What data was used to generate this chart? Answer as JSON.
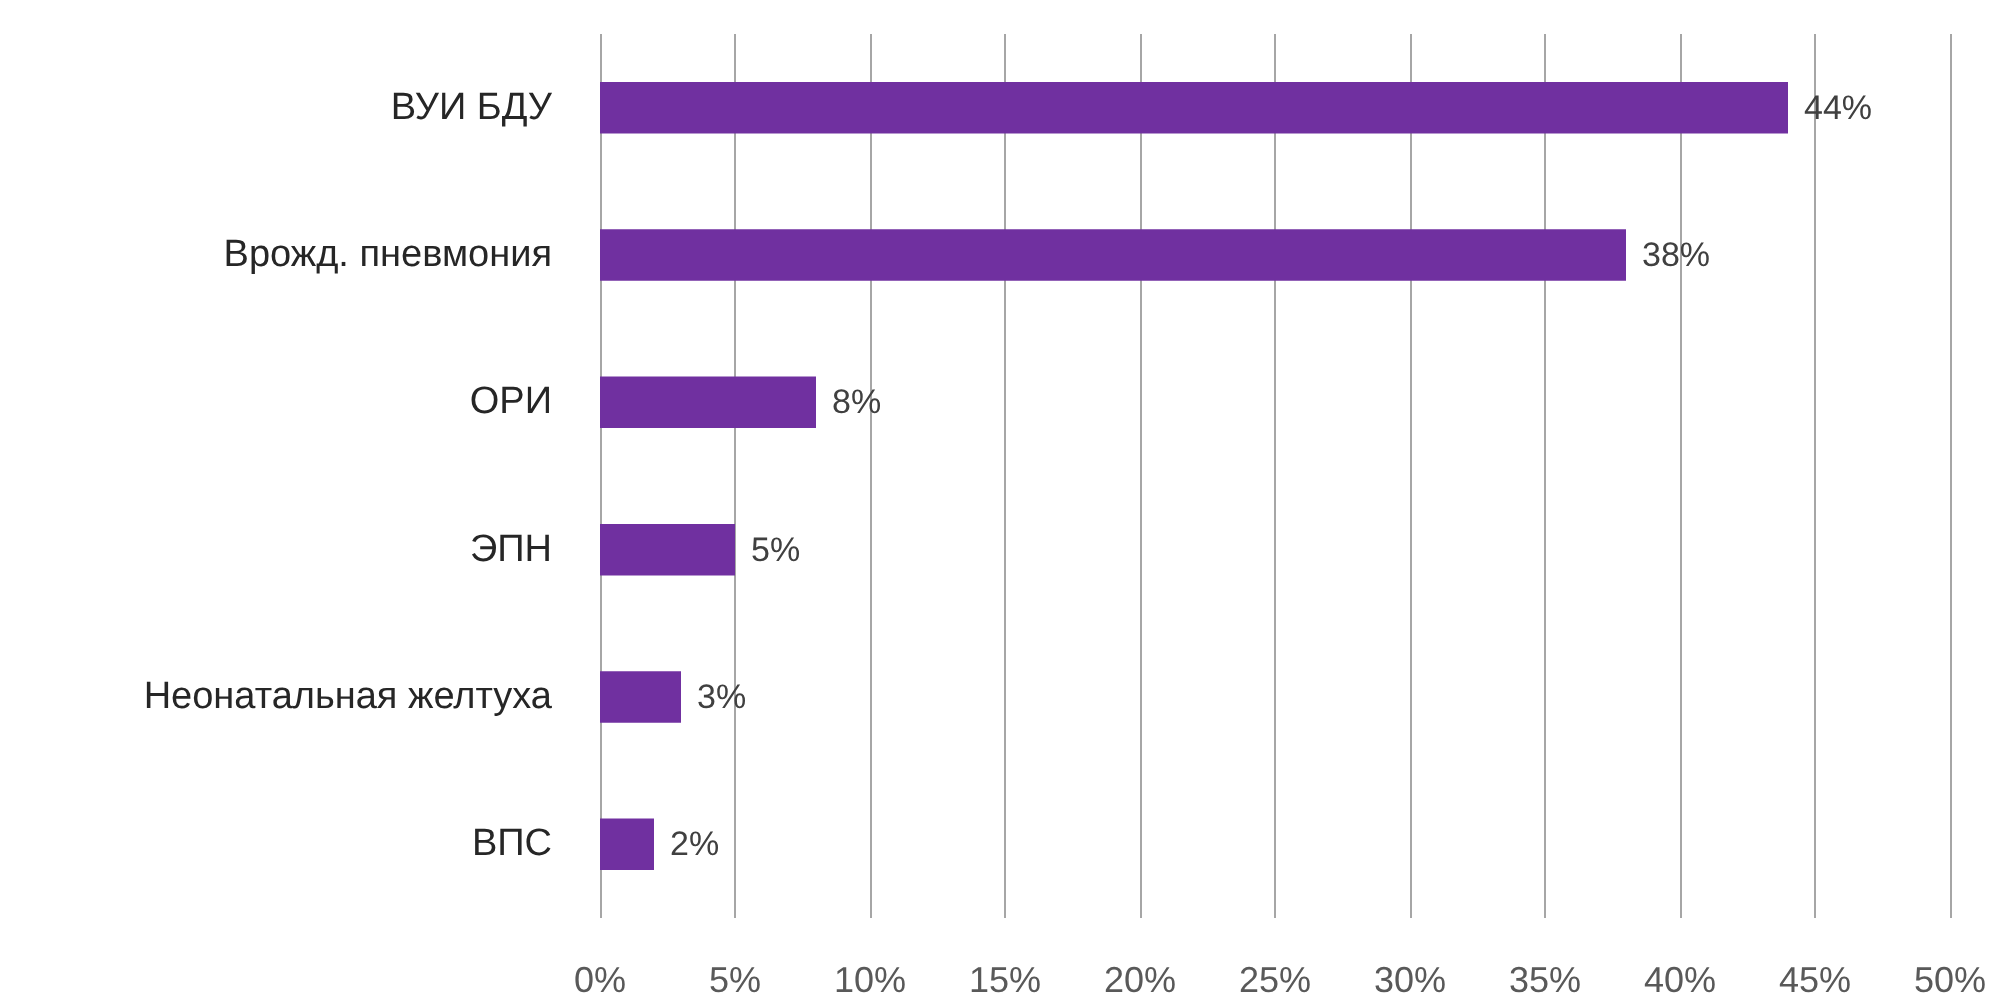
{
  "chart_data": {
    "type": "bar",
    "orientation": "horizontal",
    "categories": [
      "ВУИ БДУ",
      "Врожд. пневмония",
      "ОРИ",
      "ЭПН",
      "Неонатальная желтуха",
      "ВПС"
    ],
    "values": [
      44,
      38,
      8,
      5,
      3,
      2
    ],
    "value_labels": [
      "44%",
      "38%",
      "8%",
      "5%",
      "3%",
      "2%"
    ],
    "color": "#7030a0",
    "xlim": [
      0,
      50
    ],
    "xticks": [
      {
        "value": 0,
        "label": "0%"
      },
      {
        "value": 5,
        "label": "5%"
      },
      {
        "value": 10,
        "label": "10%"
      },
      {
        "value": 15,
        "label": "15%"
      },
      {
        "value": 20,
        "label": "20%"
      },
      {
        "value": 25,
        "label": "25%"
      },
      {
        "value": 30,
        "label": "30%"
      },
      {
        "value": 35,
        "label": "35%"
      },
      {
        "value": 40,
        "label": "40%"
      },
      {
        "value": 45,
        "label": "45%"
      },
      {
        "value": 50,
        "label": "50%"
      }
    ],
    "grid": "x"
  }
}
